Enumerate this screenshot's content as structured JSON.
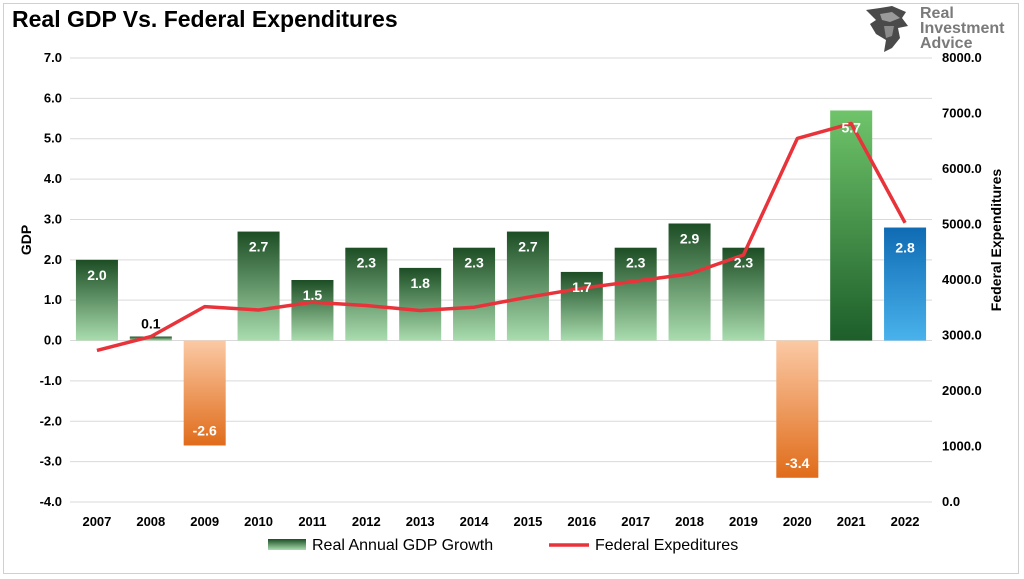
{
  "title": "Real GDP Vs. Federal Expenditures",
  "logo": {
    "line1": "Real",
    "line2": "Investment",
    "line3": "Advice"
  },
  "colors": {
    "positive_top": "#1c4d24",
    "positive_bottom": "#a9dcae",
    "negative_top": "#fbc9a4",
    "negative_bottom": "#e06c1a",
    "highlight_top": "#6fc46a",
    "highlight_bottom": "#1d5e2a",
    "forecast_top": "#0f6bb3",
    "forecast_bottom": "#49b2ec",
    "line": "#e8333b",
    "grid": "#d9d9d9"
  },
  "chart_data": {
    "type": "bar",
    "categories": [
      "2007",
      "2008",
      "2009",
      "2010",
      "2011",
      "2012",
      "2013",
      "2014",
      "2015",
      "2016",
      "2017",
      "2018",
      "2019",
      "2020",
      "2021",
      "2022"
    ],
    "series": [
      {
        "name": "Real Annual GDP Growth",
        "type": "bar",
        "axis": "left",
        "values": [
          2.0,
          0.1,
          -2.6,
          2.7,
          1.5,
          2.3,
          1.8,
          2.3,
          2.7,
          1.7,
          2.3,
          2.9,
          2.3,
          -3.4,
          5.7,
          2.8
        ],
        "labels": [
          "2.0",
          "0.1",
          "-2.6",
          "2.7",
          "1.5",
          "2.3",
          "1.8",
          "2.3",
          "2.7",
          "1.7",
          "2.3",
          "2.9",
          "2.3",
          "-3.4",
          "5.7",
          "2.8"
        ]
      },
      {
        "name": "Federal Expeditures",
        "type": "line",
        "axis": "right",
        "values": [
          2730,
          2980,
          3520,
          3460,
          3600,
          3540,
          3450,
          3510,
          3690,
          3850,
          3980,
          4110,
          4450,
          6550,
          6820,
          5030
        ]
      }
    ],
    "ylabel_left": "GDP",
    "ylabel_right": "Federal Expenditures",
    "ylim_left": [
      -4.0,
      7.0
    ],
    "ylim_right": [
      0.0,
      8000.0
    ],
    "yticks_left": [
      "7.0",
      "6.0",
      "5.0",
      "4.0",
      "3.0",
      "2.0",
      "1.0",
      "0.0",
      "-1.0",
      "-2.0",
      "-3.0",
      "-4.0"
    ],
    "yticks_right": [
      "8000.0",
      "7000.0",
      "6000.0",
      "5000.0",
      "4000.0",
      "3000.0",
      "2000.0",
      "1000.0",
      "0.0"
    ],
    "grid": true,
    "legend_position": "bottom"
  }
}
